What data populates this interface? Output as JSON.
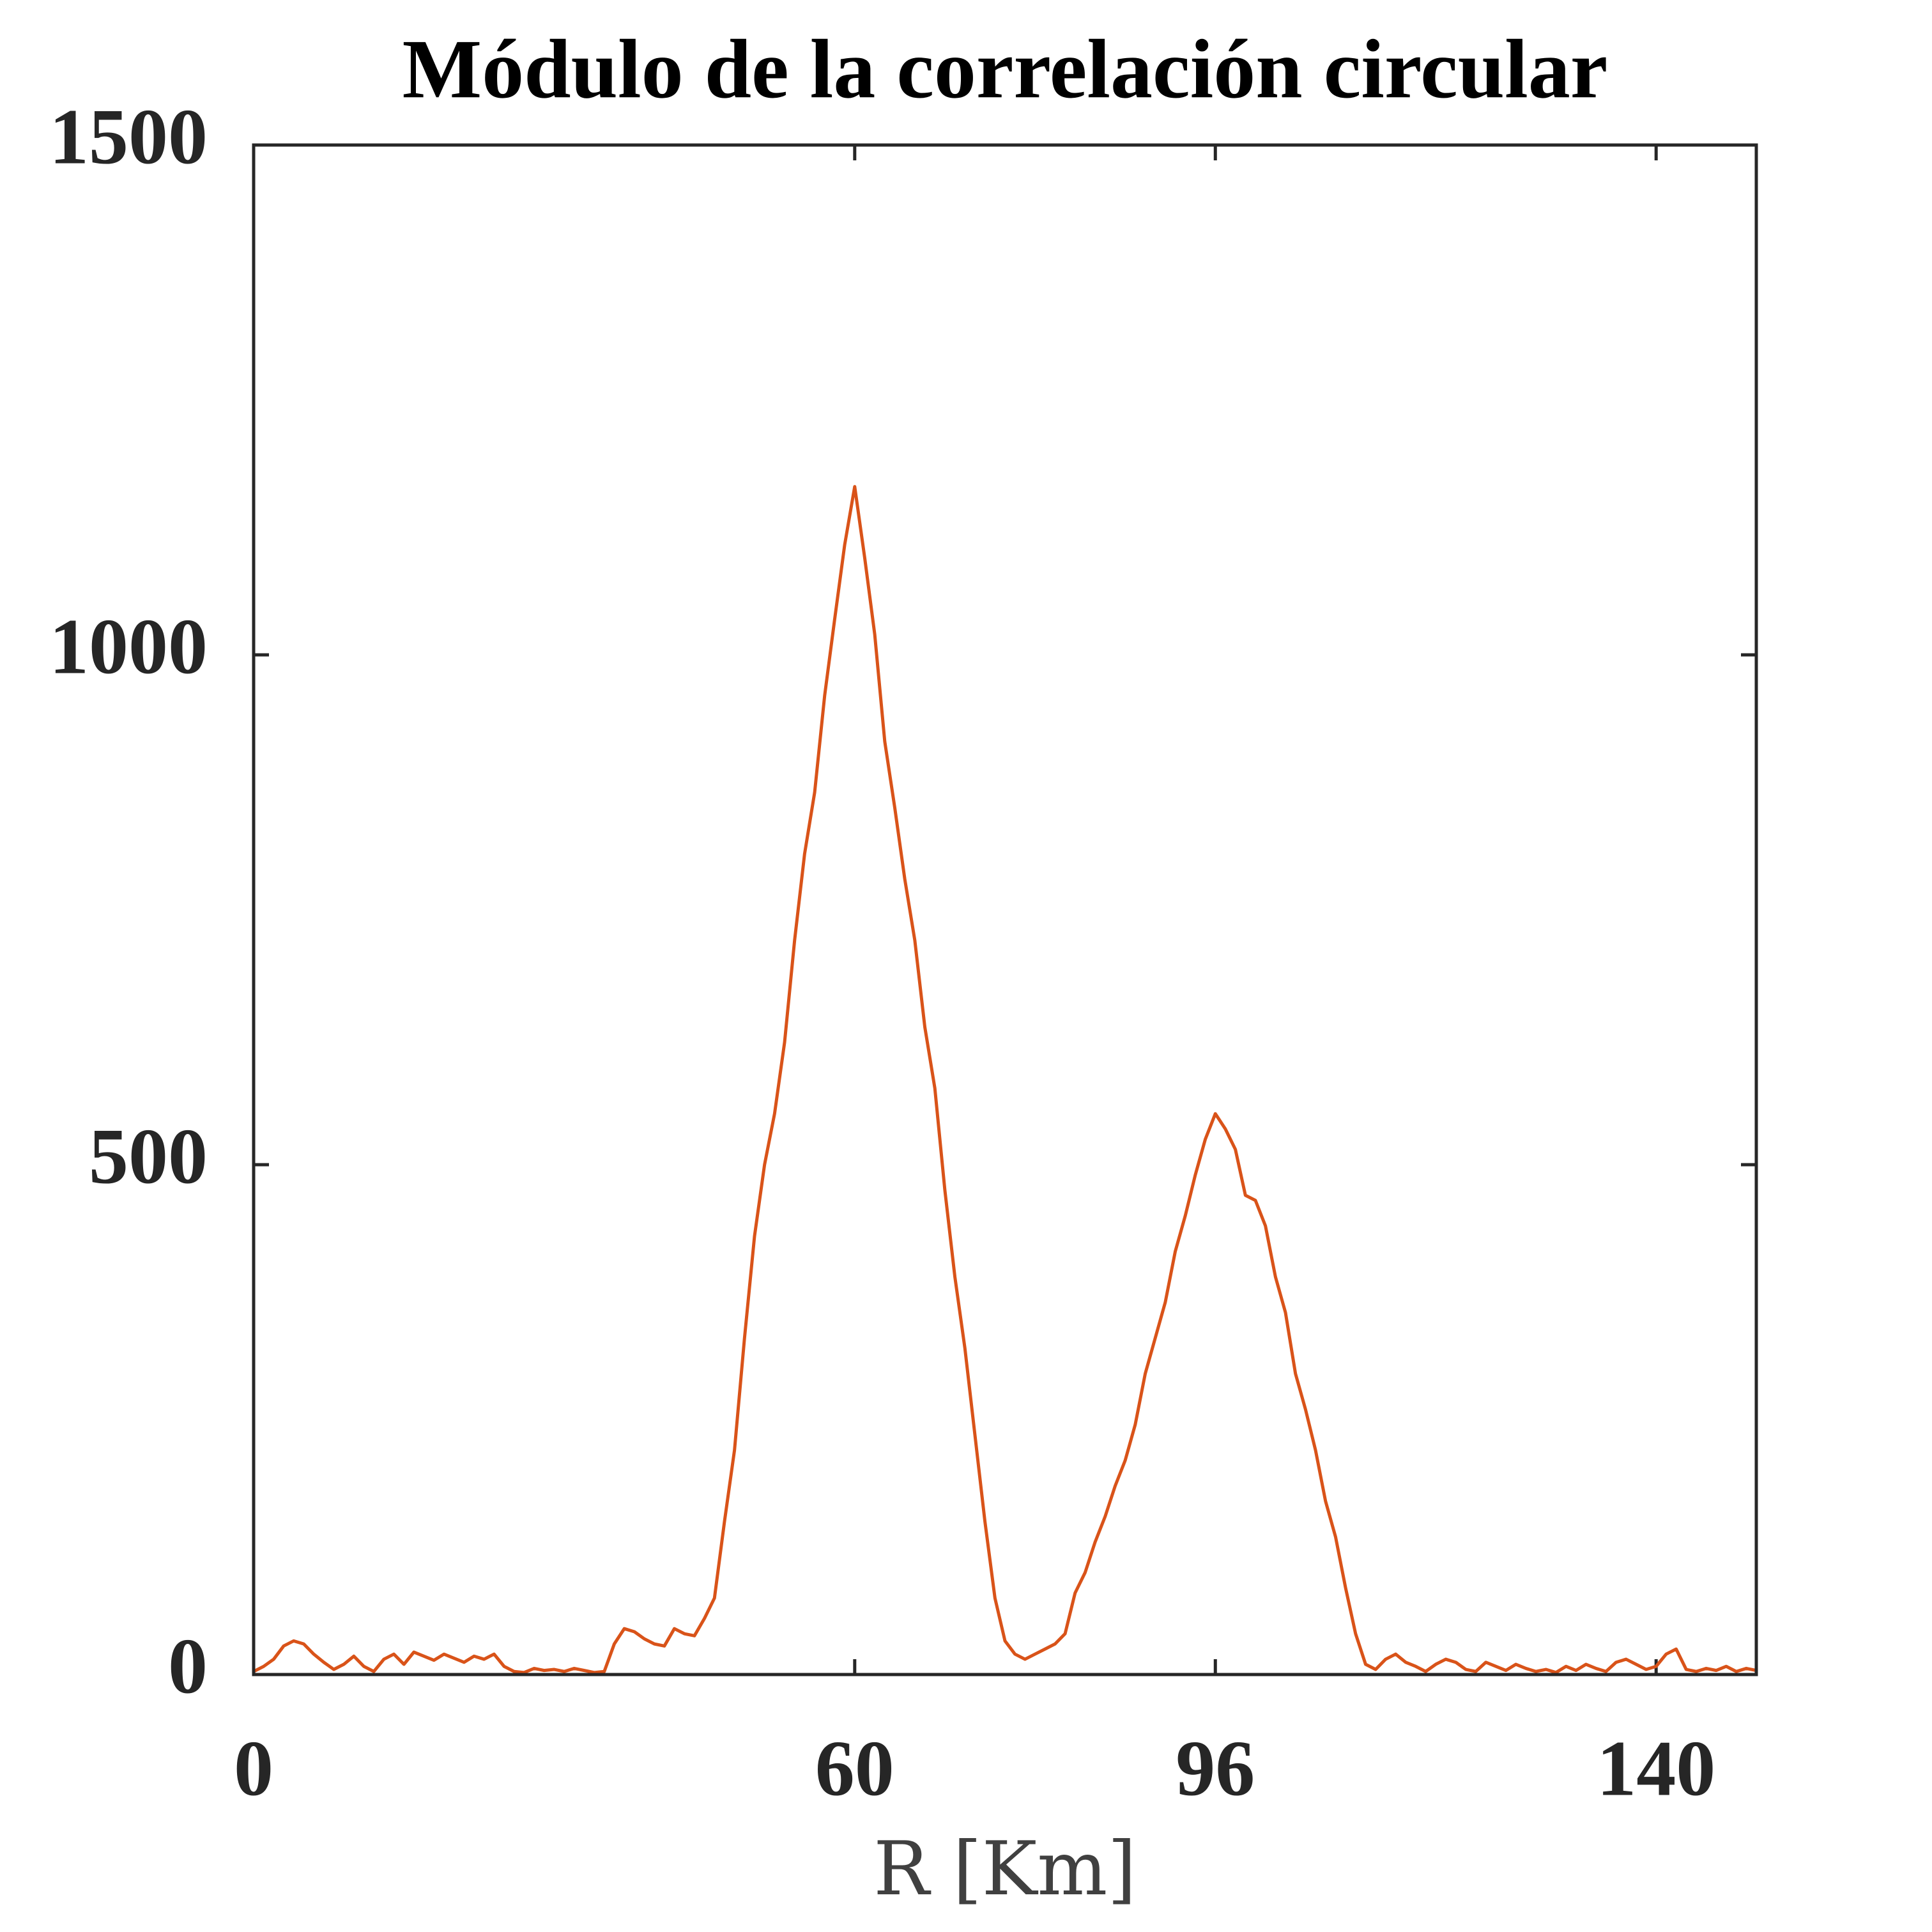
{
  "chart_data": {
    "type": "line",
    "title": "Módulo de la correlación circular",
    "x_label": "R [Km]",
    "x": [
      0,
      1,
      2,
      3,
      4,
      5,
      6,
      7,
      8,
      9,
      10,
      11,
      12,
      13,
      14,
      15,
      16,
      17,
      18,
      19,
      20,
      21,
      22,
      23,
      24,
      25,
      26,
      27,
      28,
      29,
      30,
      31,
      32,
      33,
      34,
      35,
      36,
      37,
      38,
      39,
      40,
      41,
      42,
      43,
      44,
      45,
      46,
      47,
      48,
      49,
      50,
      51,
      52,
      53,
      54,
      55,
      56,
      57,
      58,
      59,
      60,
      61,
      62,
      63,
      64,
      65,
      66,
      67,
      68,
      69,
      70,
      71,
      72,
      73,
      74,
      75,
      76,
      77,
      78,
      79,
      80,
      81,
      82,
      83,
      84,
      85,
      86,
      87,
      88,
      89,
      90,
      91,
      92,
      93,
      94,
      95,
      96,
      97,
      98,
      99,
      100,
      101,
      102,
      103,
      104,
      105,
      106,
      107,
      108,
      109,
      110,
      111,
      112,
      113,
      114,
      115,
      116,
      117,
      118,
      119,
      120,
      121,
      122,
      123,
      124,
      125,
      126,
      127,
      128,
      129,
      130,
      131,
      132,
      133,
      134,
      135,
      136,
      137,
      138,
      139,
      140,
      141,
      142,
      143,
      144,
      145,
      146,
      147,
      148,
      149,
      150
    ],
    "series": [
      {
        "color": "#d95319",
        "values": [
          3,
          8,
          15,
          28,
          33,
          30,
          20,
          12,
          5,
          10,
          18,
          8,
          3,
          15,
          20,
          10,
          22,
          18,
          14,
          20,
          16,
          12,
          18,
          15,
          20,
          8,
          3,
          2,
          6,
          4,
          5,
          3,
          6,
          4,
          2,
          3,
          30,
          45,
          42,
          35,
          30,
          28,
          45,
          40,
          38,
          55,
          75,
          150,
          220,
          330,
          430,
          500,
          550,
          620,
          720,
          805,
          865,
          960,
          1035,
          1108,
          1165,
          1095,
          1020,
          915,
          850,
          780,
          720,
          635,
          575,
          475,
          390,
          320,
          235,
          150,
          75,
          33,
          20,
          15,
          20,
          25,
          30,
          40,
          80,
          100,
          130,
          155,
          185,
          210,
          245,
          295,
          330,
          365,
          415,
          450,
          490,
          525,
          550,
          535,
          515,
          470,
          465,
          440,
          390,
          355,
          295,
          260,
          220,
          170,
          135,
          85,
          40,
          10,
          5,
          15,
          20,
          12,
          8,
          3,
          10,
          15,
          12,
          5,
          3,
          12,
          8,
          4,
          10,
          6,
          3,
          5,
          2,
          8,
          4,
          10,
          6,
          3,
          12,
          15,
          10,
          5,
          8,
          20,
          25,
          5,
          3,
          6,
          4,
          8,
          3,
          6,
          4
        ]
      }
    ],
    "xlim": [
      0,
      150
    ],
    "xticks": [
      0,
      60,
      96,
      140
    ],
    "ylim": [
      0,
      1500
    ],
    "yticks": [
      0,
      500,
      1000,
      1500
    ]
  }
}
